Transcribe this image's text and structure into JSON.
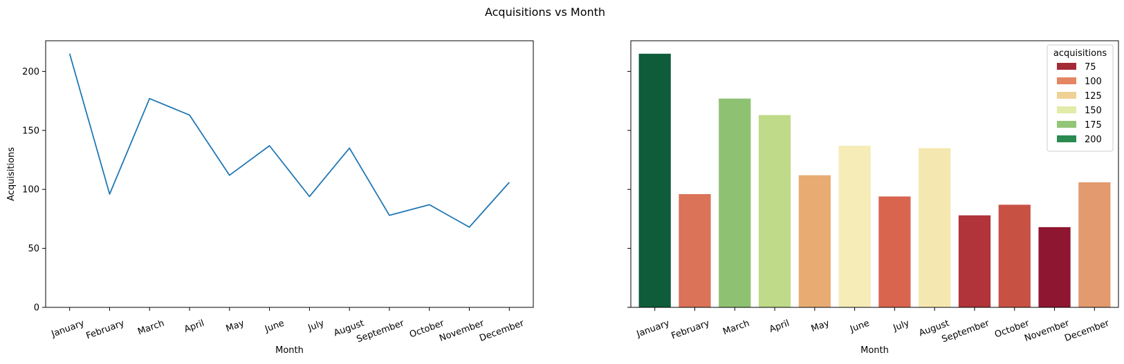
{
  "figure_title": "Acquisitions vs Month",
  "chart_data": [
    {
      "type": "line",
      "title": "",
      "xlabel": "Month",
      "ylabel": "Acquisitions",
      "categories": [
        "January",
        "February",
        "March",
        "April",
        "May",
        "June",
        "July",
        "August",
        "September",
        "October",
        "November",
        "December"
      ],
      "series": [
        {
          "values": [
            215,
            96,
            177,
            163,
            112,
            137,
            94,
            135,
            78,
            87,
            68,
            106
          ],
          "color": "#1f77b4"
        }
      ],
      "ylim": [
        0,
        226
      ],
      "yticks": [
        0,
        50,
        100,
        150,
        200
      ],
      "grid": false
    },
    {
      "type": "bar",
      "title": "",
      "xlabel": "Month",
      "ylabel": "",
      "categories": [
        "January",
        "February",
        "March",
        "April",
        "May",
        "June",
        "July",
        "August",
        "September",
        "October",
        "November",
        "December"
      ],
      "values": [
        215,
        96,
        177,
        163,
        112,
        137,
        94,
        135,
        78,
        87,
        68,
        106
      ],
      "colors": [
        "#0e5c3a",
        "#da7358",
        "#8fc173",
        "#bfda88",
        "#e8ac73",
        "#f5ecb7",
        "#d9654f",
        "#f4e8b0",
        "#b03439",
        "#c75244",
        "#8f1630",
        "#e39a6e"
      ],
      "ylim": [
        0,
        226
      ],
      "yticks": [
        0,
        50,
        100,
        150,
        200
      ],
      "grid": false,
      "legend": {
        "title": "acquisitions",
        "placement": "top-right",
        "entries": [
          {
            "label": "75",
            "color": "#a52a37"
          },
          {
            "label": "100",
            "color": "#e38662"
          },
          {
            "label": "125",
            "color": "#efd196"
          },
          {
            "label": "150",
            "color": "#e2eba8"
          },
          {
            "label": "175",
            "color": "#93c576"
          },
          {
            "label": "200",
            "color": "#2a8a50"
          }
        ]
      }
    }
  ]
}
